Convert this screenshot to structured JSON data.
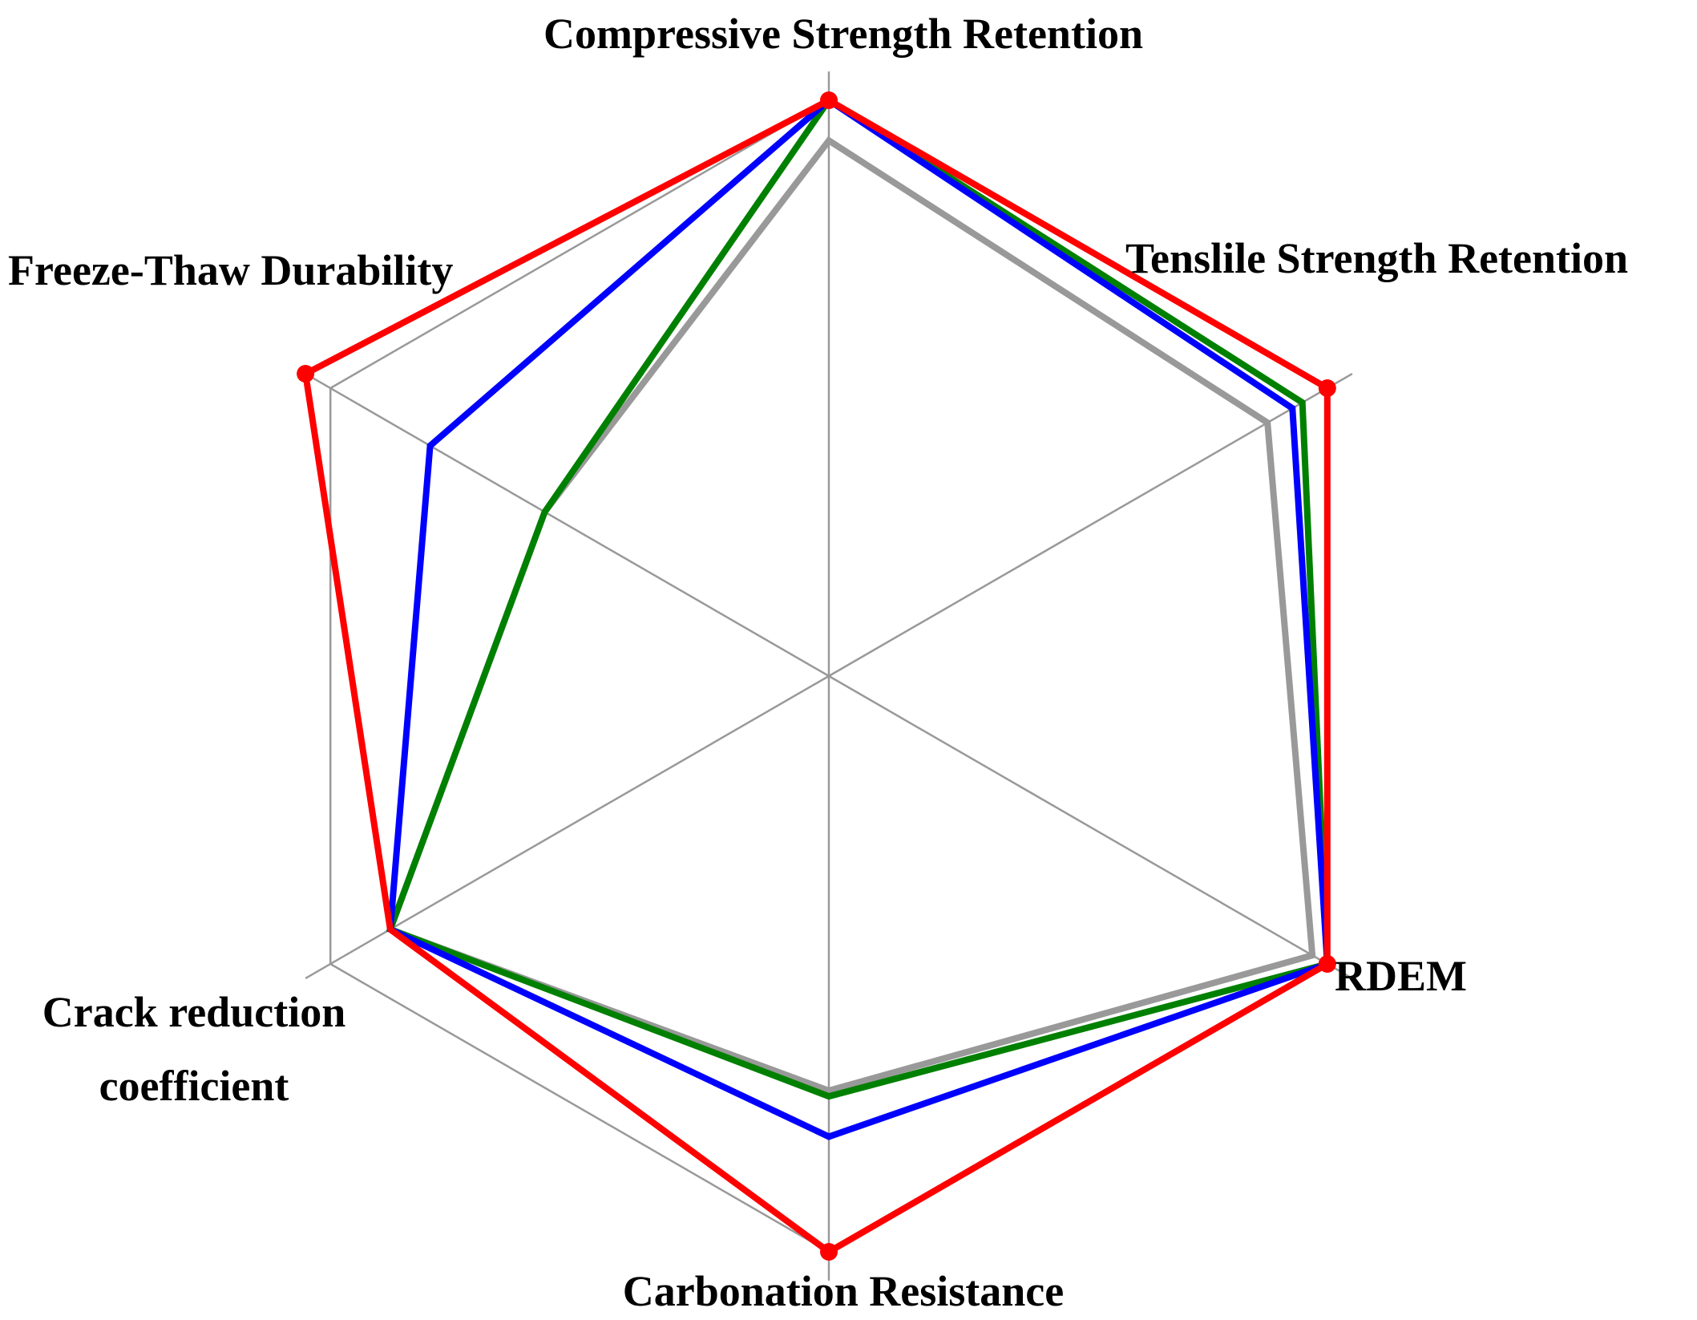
{
  "chart_data": {
    "type": "radar",
    "title": "",
    "axes": [
      {
        "key": "compressive",
        "label_lines": [
          "Compressive Strength Retention"
        ]
      },
      {
        "key": "tensile",
        "label_lines": [
          "Tenslile Strength Retention"
        ]
      },
      {
        "key": "rdem",
        "label_lines": [
          "RDEM"
        ]
      },
      {
        "key": "carbonation",
        "label_lines": [
          "Carbonation Resistance"
        ]
      },
      {
        "key": "crack",
        "label_lines": [
          "Crack reduction",
          "coefficient"
        ]
      },
      {
        "key": "freeze_thaw",
        "label_lines": [
          "Freeze-Thaw Durability"
        ]
      }
    ],
    "range": [
      0,
      1
    ],
    "grid": "outer-hexagon-and-spokes",
    "legend": "none",
    "series": [
      {
        "color": "#999999",
        "markers": false,
        "values": [
          0.93,
          0.88,
          0.97,
          0.72,
          0.88,
          0.57
        ]
      },
      {
        "color": "#008000",
        "markers": false,
        "values": [
          1.0,
          0.95,
          1.0,
          0.73,
          0.88,
          null
        ]
      },
      {
        "color": "#0000ff",
        "markers": false,
        "values": [
          1.0,
          0.93,
          1.0,
          0.8,
          0.88,
          0.8
        ]
      },
      {
        "color": "#ff0000",
        "markers": true,
        "values": [
          1.0,
          1.0,
          1.0,
          1.0,
          0.88,
          1.05
        ]
      }
    ]
  }
}
